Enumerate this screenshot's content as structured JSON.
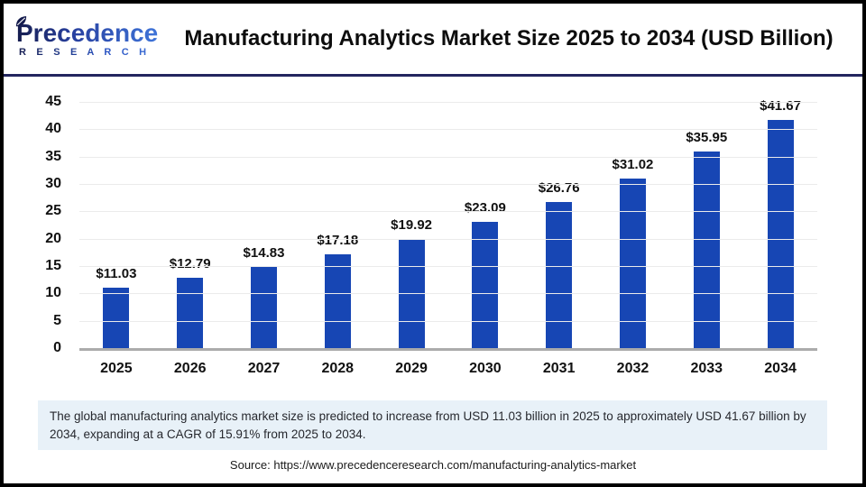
{
  "header": {
    "logo": {
      "brand": "Precedence",
      "sub": "RESEARCH"
    },
    "title": "Manufacturing Analytics Market Size 2025 to 2034 (USD Billion)"
  },
  "chart_data": {
    "type": "bar",
    "title": "Manufacturing Analytics Market Size 2025 to 2034 (USD Billion)",
    "categories": [
      "2025",
      "2026",
      "2027",
      "2028",
      "2029",
      "2030",
      "2031",
      "2032",
      "2033",
      "2034"
    ],
    "values": [
      11.03,
      12.79,
      14.83,
      17.18,
      19.92,
      23.09,
      26.76,
      31.02,
      35.95,
      41.67
    ],
    "value_labels": [
      "$11.03",
      "$12.79",
      "$14.83",
      "$17.18",
      "$19.92",
      "$23.09",
      "$26.76",
      "$31.02",
      "$35.95",
      "$41.67"
    ],
    "xlabel": "",
    "ylabel": "",
    "ylim": [
      0,
      45
    ],
    "yticks": [
      0,
      5,
      10,
      15,
      20,
      25,
      30,
      35,
      40,
      45
    ],
    "grid": true,
    "legend_position": "none",
    "bar_color": "#1746b4"
  },
  "summary": {
    "text": "The global manufacturing analytics market size is predicted to increase from USD 11.03 billion in 2025 to approximately USD 41.67 billion by 2034, expanding at a CAGR of 15.91% from 2025 to 2034."
  },
  "source": {
    "text": "Source: https://www.precedenceresearch.com/manufacturing-analytics-market"
  },
  "colors": {
    "bar": "#1746b4",
    "header_rule": "#23265f",
    "summary_bg": "#e8f1f8",
    "baseline": "#ababab",
    "outer_border": "#000000"
  }
}
